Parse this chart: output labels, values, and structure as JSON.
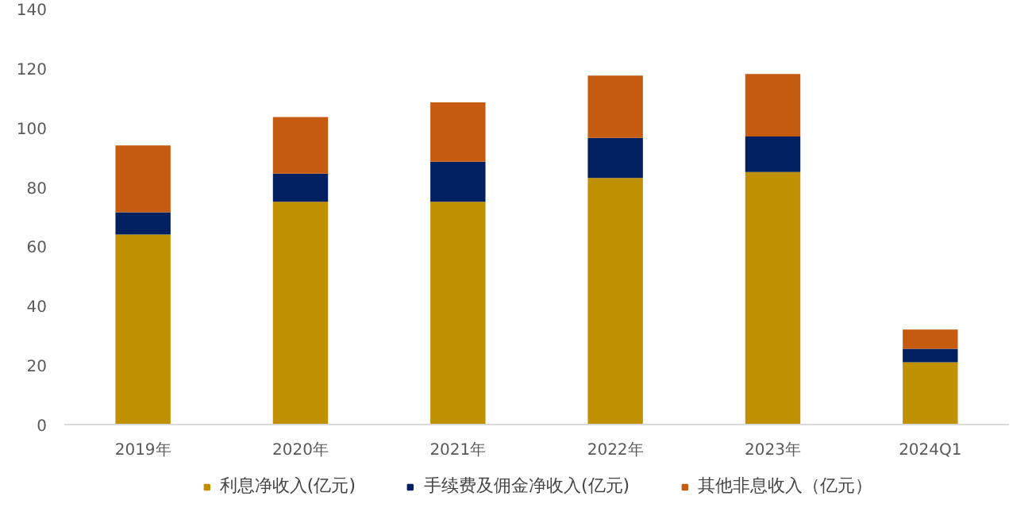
{
  "chart_data": {
    "type": "bar",
    "stacked": true,
    "categories": [
      "2019年",
      "2020年",
      "2021年",
      "2022年",
      "2023年",
      "2024Q1"
    ],
    "series": [
      {
        "name": "利息净收入(亿元)",
        "color": "#bf9000",
        "values": [
          64,
          75,
          75,
          83,
          85,
          21
        ]
      },
      {
        "name": "手续费及佣金净收入(亿元)",
        "color": "#002060",
        "values": [
          7.5,
          9.5,
          13.5,
          13.5,
          12,
          4.5
        ]
      },
      {
        "name": "其他非息收入（亿元）",
        "color": "#c55a11",
        "values": [
          22.5,
          19,
          20,
          21,
          21,
          6.5
        ]
      }
    ],
    "ylim": [
      0,
      140
    ],
    "yticks": [
      0,
      20,
      40,
      60,
      80,
      100,
      120,
      140
    ],
    "grid": false,
    "legend": "bottom"
  }
}
